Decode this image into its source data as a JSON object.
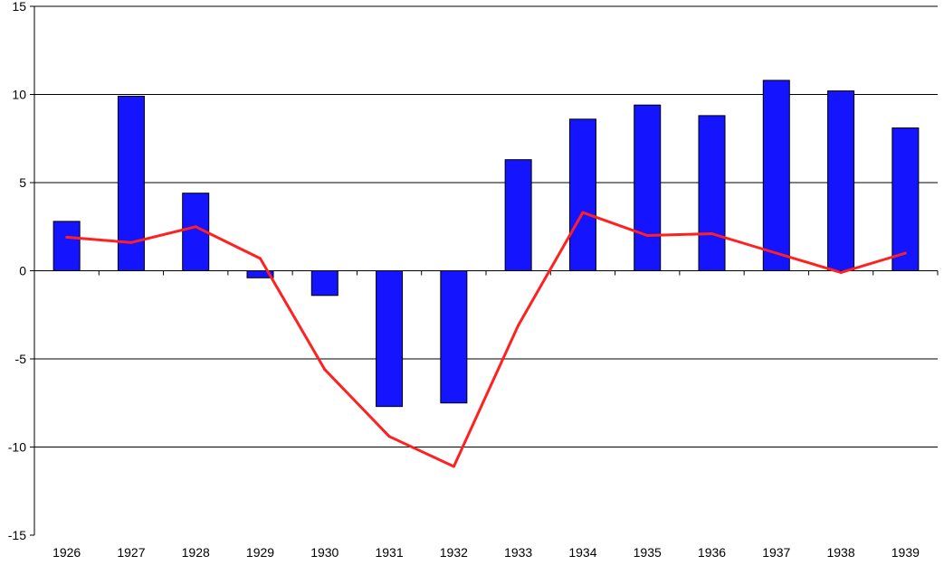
{
  "chart_data": {
    "type": "bar",
    "title": "",
    "xlabel": "",
    "ylabel": "",
    "categories": [
      "1926",
      "1927",
      "1928",
      "1929",
      "1930",
      "1931",
      "1932",
      "1933",
      "1934",
      "1935",
      "1936",
      "1937",
      "1938",
      "1939"
    ],
    "ylim": [
      -15,
      15
    ],
    "yticks": [
      -15,
      -10,
      -5,
      0,
      5,
      10,
      15
    ],
    "grid": true,
    "legend": "none",
    "series": [
      {
        "type": "bar",
        "color": "#1414ff",
        "values": [
          2.8,
          9.9,
          4.4,
          -0.4,
          -1.4,
          -7.7,
          -7.5,
          6.3,
          8.6,
          9.4,
          8.8,
          10.8,
          10.2,
          8.1
        ]
      },
      {
        "type": "line",
        "color": "#ff2020",
        "values": [
          1.9,
          1.6,
          2.5,
          0.7,
          -5.6,
          -9.4,
          -11.1,
          -3.1,
          3.3,
          2.0,
          2.1,
          1.0,
          -0.1,
          1.0
        ]
      }
    ]
  }
}
